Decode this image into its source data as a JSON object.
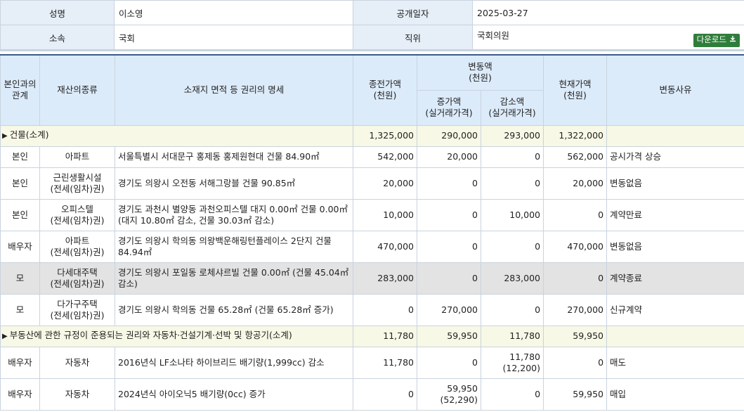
{
  "info": {
    "name_label": "성명",
    "name_value": "이소영",
    "date_label": "공개일자",
    "date_value": "2025-03-27",
    "affil_label": "소속",
    "affil_value": "국회",
    "position_label": "직위",
    "position_value": "국회의원",
    "download_label": "다운로드",
    "download_icon": "download-icon"
  },
  "headers": {
    "relation": "본인과의 관계",
    "asset_type": "재산의종류",
    "detail": "소재지 면적 등 권리의 명세",
    "prev": "종전가액 (천원)",
    "change": "변동액 (천원)",
    "increase": "증가액 (실거래가격)",
    "decrease": "감소액 (실거래가격)",
    "current": "현재가액 (천원)",
    "reason": "변동사유"
  },
  "sections": [
    {
      "title": "건물(소계)",
      "prev": "1,325,000",
      "increase": "290,000",
      "decrease": "293,000",
      "current": "1,322,000",
      "rows": [
        {
          "relation": "본인",
          "type": "아파트",
          "detail": "서울특별시 서대문구 홍제동 홍제원현대 건물 84.90㎡",
          "prev": "542,000",
          "increase": "20,000",
          "decrease": "0",
          "current": "562,000",
          "reason": "공시가격 상승"
        },
        {
          "relation": "본인",
          "type": "근린생활시설 (전세(임차)권)",
          "detail": "경기도 의왕시 오전동 서해그랑블 건물 90.85㎡",
          "prev": "20,000",
          "increase": "0",
          "decrease": "0",
          "current": "20,000",
          "reason": "변동없음"
        },
        {
          "relation": "본인",
          "type": "오피스텔 (전세(임차)권)",
          "detail": "경기도 과천시 별양동 과천오피스텔 대지 0.00㎡ 건물 0.00㎡ (대지 10.80㎡ 감소, 건물 30.03㎡ 감소)",
          "prev": "10,000",
          "increase": "0",
          "decrease": "10,000",
          "current": "0",
          "reason": "계약만료"
        },
        {
          "relation": "배우자",
          "type": "아파트 (전세(임차)권)",
          "detail": "경기도 의왕시 학의동 의왕백운해링턴플레이스 2단지 건물 84.94㎡",
          "prev": "470,000",
          "increase": "0",
          "decrease": "0",
          "current": "470,000",
          "reason": "변동없음"
        },
        {
          "relation": "모",
          "type": "다세대주택 (전세(임차)권)",
          "detail": "경기도 의왕시 포일동 로체샤르빌 건물 0.00㎡ (건물 45.04㎡ 감소)",
          "prev": "283,000",
          "increase": "0",
          "decrease": "283,000",
          "current": "0",
          "reason": "계약종료",
          "shade": true
        },
        {
          "relation": "모",
          "type": "다가구주택 (전세(임차)권)",
          "detail": "경기도 의왕시 학의동 건물 65.28㎡ (건물 65.28㎡ 증가)",
          "prev": "0",
          "increase": "270,000",
          "decrease": "0",
          "current": "270,000",
          "reason": "신규계약"
        }
      ]
    },
    {
      "title": "부동산에 관한 규정이 준용되는 권리와 자동차·건설기계·선박 및 항공기(소계)",
      "prev": "11,780",
      "increase": "59,950",
      "decrease": "11,780",
      "current": "59,950",
      "rows": [
        {
          "relation": "배우자",
          "type": "자동차",
          "detail": "2016년식 LF소나타 하이브리드 배기량(1,999cc) 감소",
          "prev": "11,780",
          "increase": "0",
          "decrease": "11,780",
          "decrease_sub": "(12,200)",
          "current": "0",
          "reason": "매도"
        },
        {
          "relation": "배우자",
          "type": "자동차",
          "detail": "2024년식 아이오닉5 배기량(0cc) 증가",
          "prev": "0",
          "increase": "59,950",
          "increase_sub": "(52,290)",
          "decrease": "0",
          "current": "59,950",
          "reason": "매입"
        }
      ]
    }
  ]
}
